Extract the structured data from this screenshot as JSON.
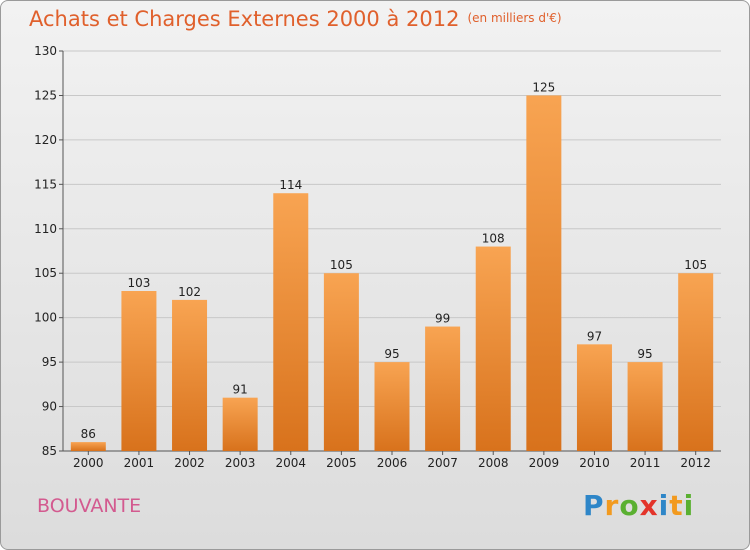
{
  "header": {
    "title": "Achats et Charges Externes 2000 à 2012",
    "unit": "(en milliers d'€)"
  },
  "footer": {
    "commune": "BOUVANTE",
    "logo_letters": [
      "P",
      "r",
      "o",
      "x",
      "i",
      "t",
      "i"
    ]
  },
  "colors": {
    "bar_top": "#f8a452",
    "bar_bottom": "#d8721c",
    "title": "#e0602c",
    "commune": "#d35a8f"
  },
  "chart_data": {
    "type": "bar",
    "title": "Achats et Charges Externes 2000 à 2012",
    "subtitle": "(en milliers d'€)",
    "categories": [
      "2000",
      "2001",
      "2002",
      "2003",
      "2004",
      "2005",
      "2006",
      "2007",
      "2008",
      "2009",
      "2010",
      "2011",
      "2012"
    ],
    "values": [
      86,
      103,
      102,
      91,
      114,
      105,
      95,
      99,
      108,
      125,
      97,
      95,
      105
    ],
    "data_labels": [
      "86",
      "103",
      "102",
      "91",
      "114",
      "105",
      "95",
      "99",
      "108",
      "125",
      "97",
      "95",
      "105"
    ],
    "ylim": [
      85,
      130
    ],
    "yticks": [
      85,
      90,
      95,
      100,
      105,
      110,
      115,
      120,
      125,
      130
    ],
    "ytick_labels": [
      "85",
      "90",
      "95",
      "100",
      "105",
      "110",
      "115",
      "120",
      "125",
      "130"
    ],
    "grid": true,
    "legend": "none"
  }
}
